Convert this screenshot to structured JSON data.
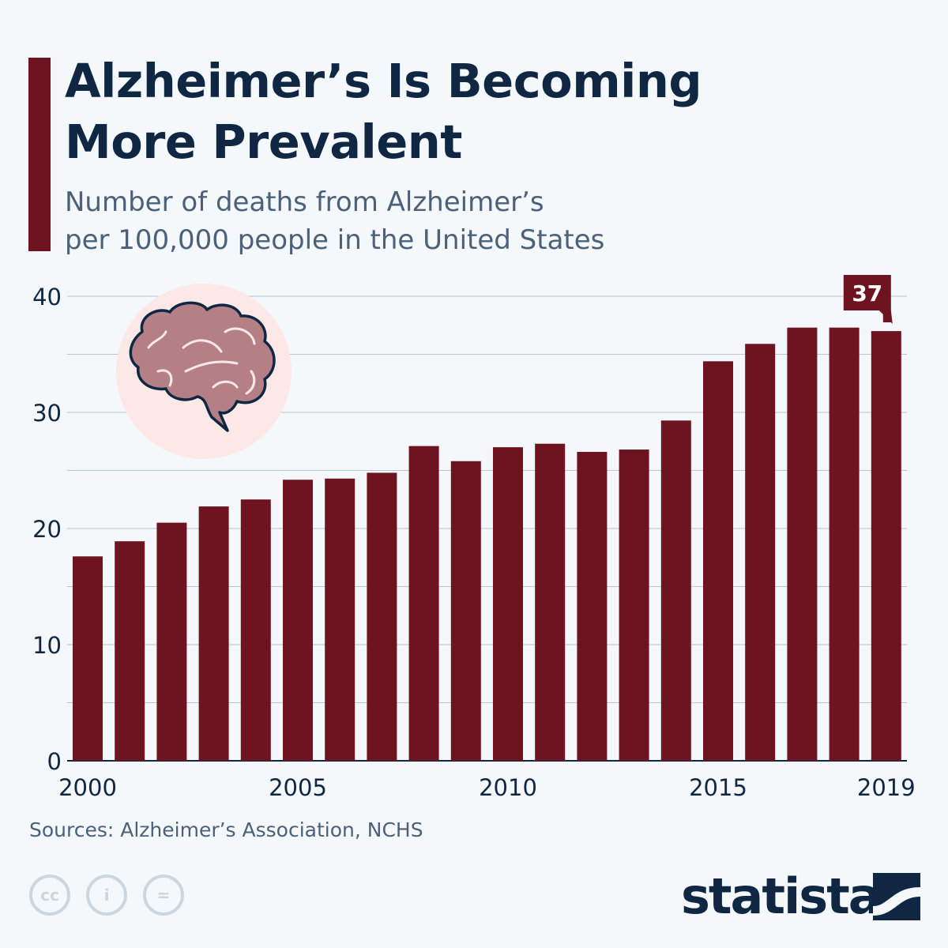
{
  "header": {
    "title_line1": "Alzheimer’s Is Becoming",
    "title_line2": "More Prevalent",
    "subtitle_line1": "Number of deaths from Alzheimer’s",
    "subtitle_line2": "per 100,000 people in the United States"
  },
  "footer": {
    "source": "Sources: Alzheimer’s Association, NCHS",
    "logo": "statista",
    "license_icons": [
      "cc-icon",
      "attribution-icon",
      "no-derivatives-icon"
    ]
  },
  "colors": {
    "bar": "#6e1420",
    "title": "#0f2742",
    "subtitle": "#4b6079",
    "grid": "#b9c4cf",
    "brain_bg": "#fde8e8",
    "brain": "#b57f86"
  },
  "chart_data": {
    "type": "bar",
    "categories": [
      "2000",
      "2001",
      "2002",
      "2003",
      "2004",
      "2005",
      "2006",
      "2007",
      "2008",
      "2009",
      "2010",
      "2011",
      "2012",
      "2013",
      "2014",
      "2015",
      "2016",
      "2017",
      "2018",
      "2019"
    ],
    "values": [
      17.6,
      18.9,
      20.5,
      21.9,
      22.5,
      24.2,
      24.3,
      24.8,
      27.1,
      25.8,
      27.0,
      27.3,
      26.6,
      26.8,
      29.3,
      34.4,
      35.9,
      37.3,
      37.3,
      37.0
    ],
    "x_tick_labels": [
      "2000",
      "2005",
      "2010",
      "2015",
      "2019"
    ],
    "y_tick_labels": [
      "0",
      "10",
      "20",
      "30",
      "40"
    ],
    "ylim": [
      0,
      40
    ],
    "grid": true,
    "annotation": {
      "category": "2019",
      "label": "37"
    },
    "title": "",
    "xlabel": "",
    "ylabel": ""
  }
}
